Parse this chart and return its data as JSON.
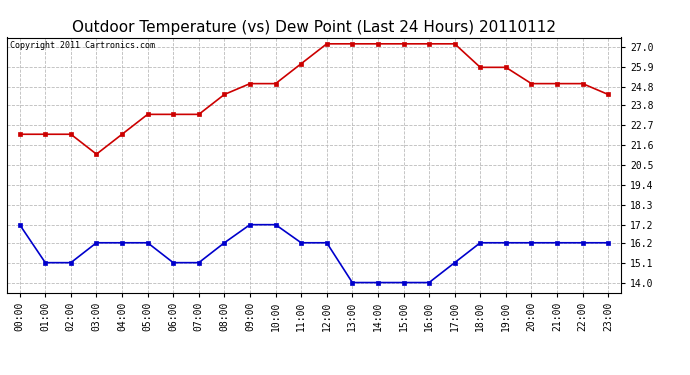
{
  "title": "Outdoor Temperature (vs) Dew Point (Last 24 Hours) 20110112",
  "copyright_text": "Copyright 2011 Cartronics.com",
  "x_labels": [
    "00:00",
    "01:00",
    "02:00",
    "03:00",
    "04:00",
    "05:00",
    "06:00",
    "07:00",
    "08:00",
    "09:00",
    "10:00",
    "11:00",
    "12:00",
    "13:00",
    "14:00",
    "15:00",
    "16:00",
    "17:00",
    "18:00",
    "19:00",
    "20:00",
    "21:00",
    "22:00",
    "23:00"
  ],
  "temp_values": [
    22.2,
    22.2,
    22.2,
    21.1,
    22.2,
    23.3,
    23.3,
    23.3,
    24.4,
    25.0,
    25.0,
    26.1,
    27.2,
    27.2,
    27.2,
    27.2,
    27.2,
    27.2,
    25.9,
    25.9,
    25.0,
    25.0,
    25.0,
    24.4
  ],
  "dew_values": [
    17.2,
    15.1,
    15.1,
    16.2,
    16.2,
    16.2,
    15.1,
    15.1,
    16.2,
    17.2,
    17.2,
    16.2,
    16.2,
    14.0,
    14.0,
    14.0,
    14.0,
    15.1,
    16.2,
    16.2,
    16.2,
    16.2,
    16.2,
    16.2
  ],
  "temp_color": "#cc0000",
  "dew_color": "#0000cc",
  "bg_color": "#ffffff",
  "plot_bg_color": "#ffffff",
  "grid_color": "#bbbbbb",
  "ylim_min": 13.45,
  "ylim_max": 27.55,
  "yticks": [
    14.0,
    15.1,
    16.2,
    17.2,
    18.3,
    19.4,
    20.5,
    21.6,
    22.7,
    23.8,
    24.8,
    25.9,
    27.0
  ],
  "title_fontsize": 11,
  "tick_fontsize": 7,
  "copyright_fontsize": 6,
  "marker_size": 2.5,
  "line_width": 1.2
}
